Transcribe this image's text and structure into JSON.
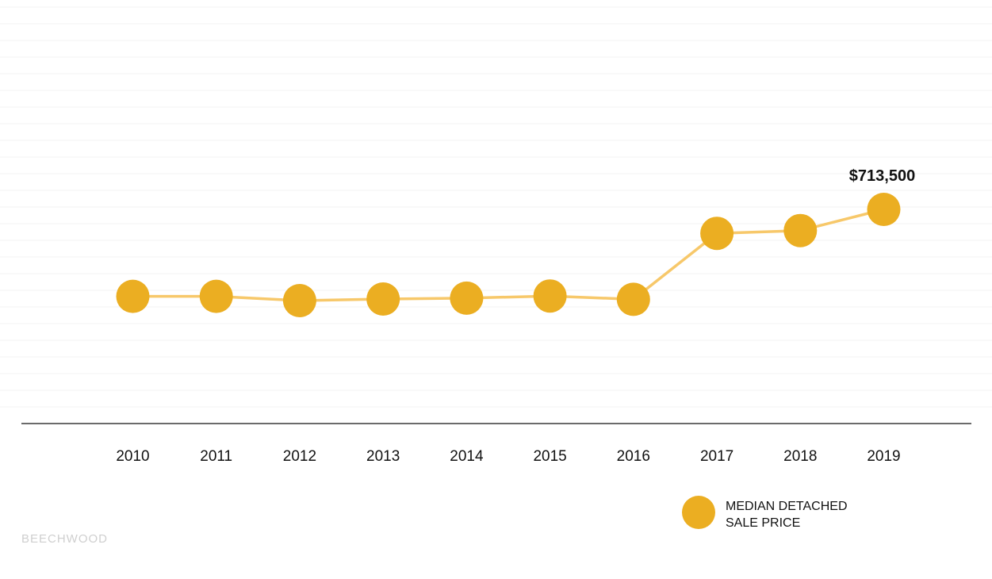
{
  "chart_data": {
    "type": "line",
    "title": "",
    "xlabel": "",
    "ylabel": "",
    "x": [
      "2010",
      "2011",
      "2012",
      "2013",
      "2014",
      "2015",
      "2016",
      "2017",
      "2018",
      "2019"
    ],
    "series": [
      {
        "name": "MEDIAN DETACHED SALE PRICE",
        "values": [
          570000,
          570000,
          563000,
          565500,
          567000,
          570500,
          565000,
          674000,
          678500,
          713500
        ]
      }
    ],
    "ylim": [
      360000,
      1050000
    ],
    "grid": true,
    "legend": "bottom-right",
    "legend_lines": [
      "MEDIAN DETACHED",
      "SALE PRICE"
    ],
    "data_labels": [
      {
        "x": "2019",
        "text": "$713,500"
      }
    ],
    "colors": {
      "point": "#ebae22",
      "line": "#f7c86a",
      "baseline": "#3a3a3a",
      "grid": "#f3f3f3"
    }
  },
  "brand": {
    "text": "BEECHWOOD"
  }
}
